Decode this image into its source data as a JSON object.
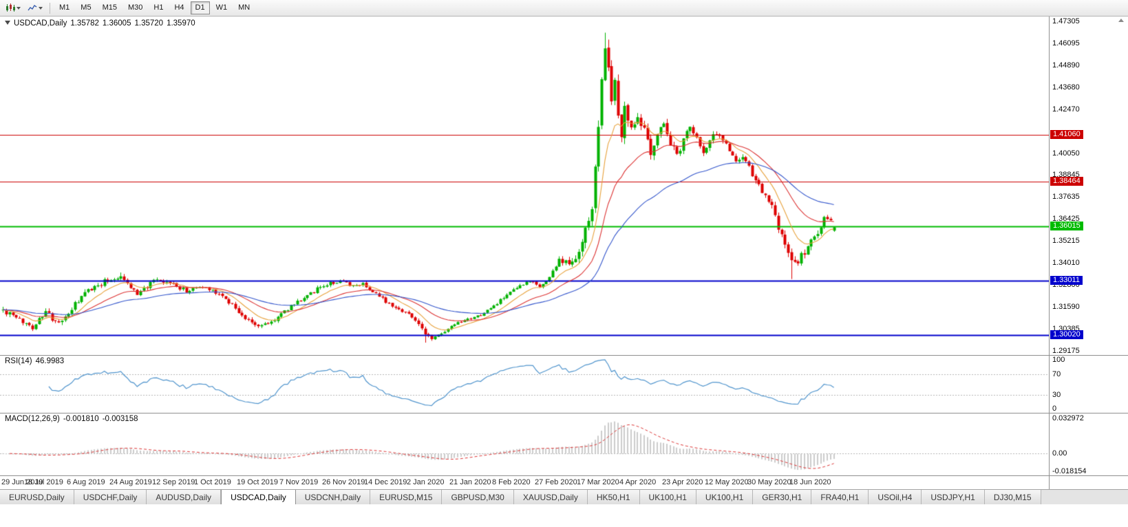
{
  "toolbar": {
    "timeframes": [
      "M1",
      "M5",
      "M15",
      "M30",
      "H1",
      "H4",
      "D1",
      "W1",
      "MN"
    ],
    "active_timeframe": "D1",
    "icons": [
      "candlestick-chart-icon",
      "line-chart-icon"
    ]
  },
  "chart": {
    "symbol_info": {
      "title": "USDCAD,Daily",
      "open": "1.35782",
      "high": "1.36005",
      "low": "1.35720",
      "close": "1.35970"
    },
    "colors": {
      "background": "#ffffff",
      "up": "#00b200",
      "down": "#de0000",
      "ma_fast": "#e8a23c",
      "ma_mid": "#dd3333",
      "ma_slow": "#3355cc",
      "rsi_line": "#4f94cd",
      "macd_bar": "#cccccc",
      "macd_signal": "#dd3333",
      "dashed_level": "#b5b5b5",
      "panel_border": "#8f8f8f",
      "date_text": "#2e2e2e"
    },
    "price_axis": {
      "labels": [
        "1.47305",
        "1.46095",
        "1.44890",
        "1.43680",
        "1.42470",
        "1.40050",
        "1.38845",
        "1.37635",
        "1.36425",
        "1.35215",
        "1.34010",
        "1.32800",
        "1.31590",
        "1.30385",
        "1.29175"
      ]
    }
  },
  "chart_data": {
    "type": "candlestick",
    "symbol": "USDCAD",
    "timeframe": "Daily",
    "num_candles": 255,
    "seed": 42,
    "price_range": [
      1.2894,
      1.4757
    ],
    "plot": {
      "candle_area_width": 1212,
      "left_pad": 2
    },
    "last_candle": {
      "o": 1.35782,
      "h": 1.36005,
      "l": 1.3572,
      "c": 1.3597
    },
    "waypoints": [
      [
        0,
        1.314,
        0.0025
      ],
      [
        4,
        1.3095,
        0.0022
      ],
      [
        9,
        1.305,
        0.0022
      ],
      [
        13,
        1.313,
        0.0022
      ],
      [
        17,
        1.306,
        0.0022
      ],
      [
        22,
        1.317,
        0.0022
      ],
      [
        26,
        1.325,
        0.0022
      ],
      [
        31,
        1.33,
        0.002
      ],
      [
        36,
        1.333,
        0.002
      ],
      [
        41,
        1.323,
        0.002
      ],
      [
        46,
        1.33,
        0.0018
      ],
      [
        52,
        1.3285,
        0.0016
      ],
      [
        56,
        1.3245,
        0.0016
      ],
      [
        60,
        1.327,
        0.0016
      ],
      [
        64,
        1.3255,
        0.0016
      ],
      [
        70,
        1.3175,
        0.0018
      ],
      [
        74,
        1.309,
        0.0018
      ],
      [
        78,
        1.3055,
        0.0016
      ],
      [
        82,
        1.3075,
        0.0016
      ],
      [
        86,
        1.3135,
        0.0016
      ],
      [
        90,
        1.319,
        0.0016
      ],
      [
        94,
        1.3235,
        0.0016
      ],
      [
        99,
        1.3285,
        0.0016
      ],
      [
        103,
        1.33,
        0.0014
      ],
      [
        107,
        1.327,
        0.0014
      ],
      [
        110,
        1.329,
        0.0014
      ],
      [
        113,
        1.324,
        0.0014
      ],
      [
        117,
        1.319,
        0.0014
      ],
      [
        121,
        1.315,
        0.0014
      ],
      [
        125,
        1.311,
        0.0014
      ],
      [
        128,
        1.303,
        0.0016
      ],
      [
        131,
        1.2985,
        0.0014
      ],
      [
        134,
        1.301,
        0.0012
      ],
      [
        138,
        1.306,
        0.0012
      ],
      [
        141,
        1.308,
        0.0012
      ],
      [
        145,
        1.3105,
        0.0012
      ],
      [
        149,
        1.315,
        0.0012
      ],
      [
        153,
        1.321,
        0.0012
      ],
      [
        157,
        1.326,
        0.0012
      ],
      [
        161,
        1.33,
        0.0012
      ],
      [
        164,
        1.327,
        0.0014
      ],
      [
        167,
        1.332,
        0.0016
      ],
      [
        170,
        1.342,
        0.0022
      ],
      [
        173,
        1.339,
        0.0025
      ],
      [
        176,
        1.346,
        0.0035
      ],
      [
        178,
        1.357,
        0.0045
      ],
      [
        180,
        1.371,
        0.0055
      ],
      [
        181,
        1.39,
        0.006
      ],
      [
        182,
        1.415,
        0.0065
      ],
      [
        183,
        1.442,
        0.0065
      ],
      [
        184,
        1.462,
        0.006
      ],
      [
        185,
        1.449,
        0.006
      ],
      [
        186,
        1.43,
        0.006
      ],
      [
        187,
        1.442,
        0.0055
      ],
      [
        188,
        1.423,
        0.0055
      ],
      [
        189,
        1.412,
        0.005
      ],
      [
        190,
        1.426,
        0.005
      ],
      [
        192,
        1.415,
        0.0045
      ],
      [
        194,
        1.423,
        0.004
      ],
      [
        196,
        1.412,
        0.0038
      ],
      [
        198,
        1.402,
        0.0036
      ],
      [
        200,
        1.41,
        0.0034
      ],
      [
        202,
        1.418,
        0.0032
      ],
      [
        204,
        1.406,
        0.003
      ],
      [
        206,
        1.399,
        0.003
      ],
      [
        208,
        1.408,
        0.0028
      ],
      [
        210,
        1.416,
        0.0026
      ],
      [
        212,
        1.409,
        0.0026
      ],
      [
        214,
        1.4,
        0.0026
      ],
      [
        216,
        1.407,
        0.0024
      ],
      [
        218,
        1.412,
        0.0024
      ],
      [
        220,
        1.408,
        0.0024
      ],
      [
        222,
        1.402,
        0.0024
      ],
      [
        224,
        1.395,
        0.0024
      ],
      [
        226,
        1.399,
        0.0024
      ],
      [
        228,
        1.392,
        0.0024
      ],
      [
        230,
        1.385,
        0.0026
      ],
      [
        232,
        1.379,
        0.0028
      ],
      [
        234,
        1.375,
        0.0028
      ],
      [
        236,
        1.365,
        0.0032
      ],
      [
        238,
        1.354,
        0.0034
      ],
      [
        240,
        1.345,
        0.0034
      ],
      [
        242,
        1.339,
        0.0032
      ],
      [
        244,
        1.344,
        0.003
      ],
      [
        246,
        1.349,
        0.0028
      ],
      [
        248,
        1.354,
        0.0028
      ],
      [
        250,
        1.36,
        0.0026
      ],
      [
        251,
        1.3655,
        0.0024
      ],
      [
        253,
        1.363,
        0.0022
      ],
      [
        254,
        1.3597,
        0.002
      ]
    ],
    "spikes": [
      {
        "i": 36,
        "high": 1.3348
      },
      {
        "i": 129,
        "low": 1.2962
      },
      {
        "i": 184,
        "high": 1.4668
      },
      {
        "i": 185,
        "high": 1.463
      },
      {
        "i": 241,
        "low": 1.3312
      }
    ],
    "levels": [
      {
        "price": 1.4106,
        "label": "1.41060",
        "color": "#cc0000",
        "width": 1.2
      },
      {
        "price": 1.38464,
        "label": "1.38464",
        "color": "#cc0000",
        "width": 1.2
      },
      {
        "price": 1.36015,
        "label": "1.36015",
        "color": "#00bb00",
        "width": 2
      },
      {
        "price": 1.33011,
        "label": "1.33011",
        "color": "#0000cc",
        "width": 2
      },
      {
        "price": 1.3002,
        "label": "1.30020",
        "color": "#0000cc",
        "width": 2
      }
    ],
    "moving_averages": [
      {
        "period": 10,
        "color": "#e8a23c"
      },
      {
        "period": 24,
        "color": "#dd3333"
      },
      {
        "period": 52,
        "color": "#3355cc"
      }
    ],
    "date_labels": [
      {
        "text": "29 Jun 2019",
        "i": 0
      },
      {
        "text": "18 Jul 2019",
        "i": 13
      },
      {
        "text": "6 Aug 2019",
        "i": 26
      },
      {
        "text": "24 Aug 2019",
        "i": 39
      },
      {
        "text": "12 Sep 2019",
        "i": 52
      },
      {
        "text": "1 Oct 2019",
        "i": 65
      },
      {
        "text": "19 Oct 2019",
        "i": 78
      },
      {
        "text": "7 Nov 2019",
        "i": 91
      },
      {
        "text": "26 Nov 2019",
        "i": 104
      },
      {
        "text": "14 Dec 2019",
        "i": 117
      },
      {
        "text": "2 Jan 2020",
        "i": 130
      },
      {
        "text": "21 Jan 2020",
        "i": 143
      },
      {
        "text": "8 Feb 2020",
        "i": 156
      },
      {
        "text": "27 Feb 2020",
        "i": 169
      },
      {
        "text": "17 Mar 2020",
        "i": 182
      },
      {
        "text": "4 Apr 2020",
        "i": 195
      },
      {
        "text": "23 Apr 2020",
        "i": 208
      },
      {
        "text": "12 May 2020",
        "i": 221
      },
      {
        "text": "30 May 2020",
        "i": 234
      },
      {
        "text": "18 Jun 2020",
        "i": 247
      }
    ],
    "indicators": {
      "rsi": {
        "name": "RSI(14)",
        "value": "46.9983",
        "period": 14,
        "axis_labels": [
          "100",
          "70",
          "30",
          "0"
        ],
        "dashed_levels": [
          70,
          30
        ],
        "range": [
          0,
          100
        ]
      },
      "macd": {
        "name": "MACD(12,26,9)",
        "value": "-0.001810",
        "signal_value": "-0.003158",
        "fast": 12,
        "slow": 26,
        "signal": 9,
        "axis_labels": [
          "0.032972",
          "0.00",
          "-0.018154"
        ],
        "axis_max": 0.032972,
        "axis_min": -0.018154
      }
    }
  },
  "tabs": {
    "active_index": 3,
    "items": [
      {
        "label": "EURUSD,Daily"
      },
      {
        "label": "USDCHF,Daily"
      },
      {
        "label": "AUDUSD,Daily"
      },
      {
        "label": "USDCAD,Daily"
      },
      {
        "label": "USDCNH,Daily"
      },
      {
        "label": "EURUSD,M15"
      },
      {
        "label": "GBPUSD,M30"
      },
      {
        "label": "XAUUSD,Daily"
      },
      {
        "label": "HK50,H1"
      },
      {
        "label": "UK100,H1"
      },
      {
        "label": "UK100,H1"
      },
      {
        "label": "GER30,H1"
      },
      {
        "label": "FRA40,H1"
      },
      {
        "label": "USOil,H4"
      },
      {
        "label": "USDJPY,H1"
      },
      {
        "label": "DJ30,M15"
      }
    ]
  }
}
